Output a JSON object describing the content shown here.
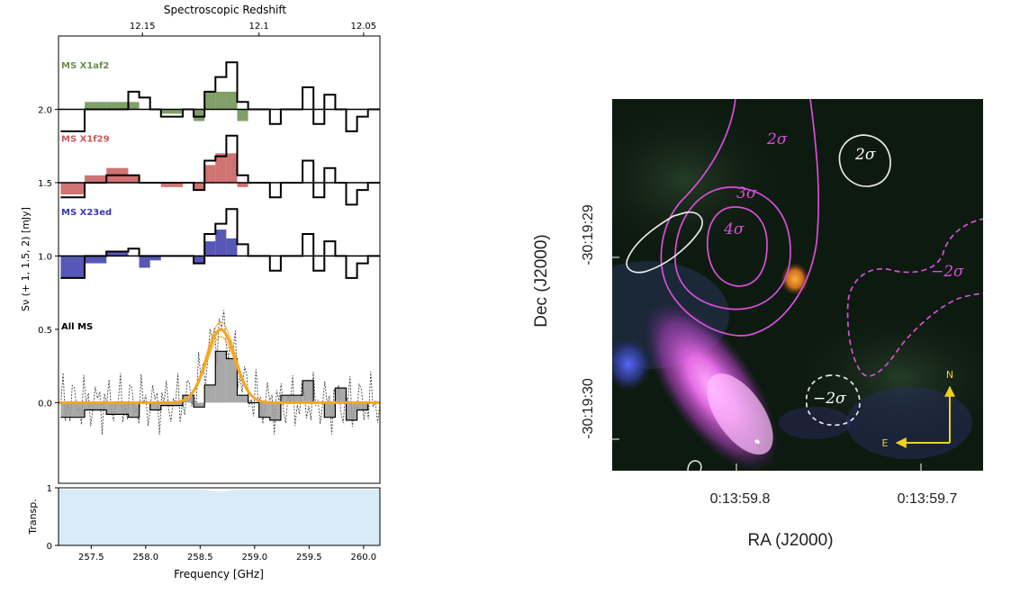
{
  "chart_data": [
    {
      "type": "line",
      "panel": "spectrum",
      "top_axis": {
        "label": "Spectroscopic Redshift",
        "ticks": [
          {
            "label": "12.15",
            "freq": 257.97
          },
          {
            "label": "12.1",
            "freq": 259.04
          },
          {
            "label": "12.05",
            "freq": 260.0
          }
        ]
      },
      "xlabel": "Frequency [GHz]",
      "xlim": [
        257.2,
        260.15
      ],
      "xticks": [
        "257.5",
        "258.0",
        "258.5",
        "259.0",
        "259.5",
        "260.0"
      ],
      "ylabel": "Sν (+ 1, 1.5, 2) [mJy]",
      "ylim": [
        -0.55,
        2.5
      ],
      "yticks": [
        "0.0",
        "0.5",
        "1.0",
        "1.5",
        "2.0"
      ],
      "bin_edges": [
        257.22,
        257.44,
        257.64,
        257.84,
        257.94,
        258.04,
        258.14,
        258.34,
        258.44,
        258.54,
        258.64,
        258.74,
        258.84,
        258.94,
        259.04,
        259.14,
        259.24,
        259.44,
        259.54,
        259.64,
        259.74,
        259.84,
        259.94,
        260.04,
        260.15
      ],
      "series": [
        {
          "name": "MS X1af2",
          "offset": 2.0,
          "color": "#6b8e4e",
          "label_y": 2.28,
          "model_values": [
            0.0,
            0.05,
            0.05,
            0.05,
            0.0,
            0.0,
            -0.03,
            0.0,
            -0.08,
            0.12,
            0.12,
            0.12,
            -0.08,
            0.0,
            0.0,
            0.0,
            0.0,
            0.0,
            0.0,
            0.0,
            0.0,
            0.0,
            0.0,
            0.0
          ],
          "data_values": [
            -0.15,
            0.0,
            0.0,
            0.12,
            0.08,
            0.0,
            -0.05,
            0.0,
            -0.05,
            0.12,
            0.22,
            0.32,
            0.05,
            0.0,
            0.0,
            -0.1,
            0.0,
            0.15,
            -0.1,
            0.1,
            0.0,
            -0.15,
            -0.05,
            0.0
          ]
        },
        {
          "name": "MS X1f29",
          "offset": 1.5,
          "color": "#c85a5a",
          "label_y": 1.78,
          "model_values": [
            -0.08,
            0.05,
            0.1,
            0.05,
            0.0,
            0.0,
            -0.03,
            0.0,
            -0.05,
            0.12,
            0.2,
            0.2,
            -0.03,
            0.0,
            0.0,
            0.0,
            0.0,
            0.0,
            0.0,
            0.0,
            0.0,
            0.0,
            0.0,
            0.0
          ],
          "data_values": [
            -0.1,
            0.0,
            0.05,
            0.05,
            0.0,
            0.0,
            0.0,
            0.0,
            -0.05,
            0.15,
            0.18,
            0.32,
            0.05,
            0.0,
            0.0,
            -0.1,
            0.0,
            0.15,
            -0.1,
            0.1,
            0.0,
            -0.15,
            -0.05,
            0.0
          ]
        },
        {
          "name": "MS X23ed",
          "offset": 1.0,
          "color": "#3a3aaa",
          "label_y": 1.28,
          "model_values": [
            -0.15,
            -0.05,
            0.03,
            0.0,
            -0.08,
            -0.03,
            0.0,
            0.0,
            -0.05,
            0.1,
            0.18,
            0.12,
            0.0,
            0.0,
            0.0,
            0.0,
            0.0,
            0.0,
            0.0,
            0.0,
            0.0,
            0.0,
            0.0,
            0.0
          ],
          "data_values": [
            -0.15,
            0.0,
            0.03,
            0.05,
            0.0,
            0.0,
            0.0,
            0.0,
            -0.05,
            0.15,
            0.22,
            0.32,
            0.08,
            0.0,
            0.0,
            -0.1,
            0.0,
            0.15,
            -0.1,
            0.1,
            0.0,
            -0.15,
            -0.05,
            0.0
          ]
        },
        {
          "name": "All MS",
          "offset": 0.0,
          "color": "#000000",
          "label_y": 0.5,
          "stacked_values": [
            -0.1,
            -0.05,
            -0.08,
            -0.1,
            0.0,
            -0.05,
            -0.02,
            0.05,
            -0.03,
            0.12,
            0.35,
            0.3,
            0.05,
            0.0,
            -0.1,
            -0.12,
            0.05,
            0.15,
            0.0,
            -0.1,
            0.1,
            -0.12,
            -0.05,
            0.0
          ],
          "gaussian_fit": {
            "center_ghz": 258.69,
            "peak_mjy": 0.5,
            "sigma_ghz": 0.13,
            "color": "#f5a623"
          }
        }
      ],
      "transmission": {
        "ylabel": "Transp.",
        "yticks": [
          "0",
          "1"
        ],
        "freq": [
          257.2,
          258.5,
          258.62,
          258.69,
          258.76,
          258.9,
          260.15
        ],
        "value": [
          0.97,
          0.97,
          0.95,
          0.93,
          0.95,
          0.97,
          0.97
        ],
        "fill_color": "#d8ebf6"
      }
    },
    {
      "type": "heatmap",
      "panel": "image",
      "xlabel": "RA (J2000)",
      "ylabel": "Dec (J2000)",
      "xticks": [
        "0:13:59.8",
        "0:13:59.7"
      ],
      "yticks": [
        "-30:19:29",
        "-30:19:30"
      ],
      "contours": [
        {
          "label": "2σ",
          "color": "#d94fd9",
          "style": "solid"
        },
        {
          "label": "3σ",
          "color": "#d94fd9",
          "style": "solid"
        },
        {
          "label": "4σ",
          "color": "#d94fd9",
          "style": "solid"
        },
        {
          "label": "−2σ",
          "color": "#d94fd9",
          "style": "dashed"
        },
        {
          "label": "2σ",
          "color": "#ffffff",
          "style": "solid"
        },
        {
          "label": "−2σ",
          "color": "#ffffff",
          "style": "dashed"
        }
      ],
      "compass": {
        "north": "N",
        "east": "E",
        "color": "#f0d020"
      }
    }
  ]
}
